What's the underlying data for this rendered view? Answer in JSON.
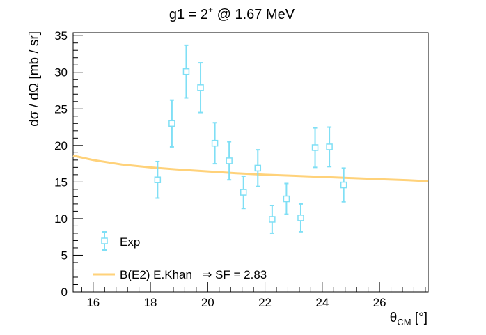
{
  "chart_data": {
    "type": "scatter",
    "title_main": "g1 = 2",
    "title_sup": "+",
    "title_rest": " @ 1.67 MeV",
    "ylabel": "dσ / dΩ [mb / sr]",
    "xlabel_main": "θ",
    "xlabel_sub": "CM",
    "xlabel_unit": " [°]",
    "xlim": [
      15.3,
      27.7
    ],
    "ylim": [
      0,
      35.4
    ],
    "x_ticks": [
      16,
      18,
      20,
      22,
      24,
      26
    ],
    "y_ticks": [
      0,
      5,
      10,
      15,
      20,
      25,
      30,
      35
    ],
    "series": [
      {
        "name": "Exp",
        "kind": "points_with_errors",
        "color": "#7fdff5",
        "points": [
          {
            "x": 18.25,
            "y": 15.3,
            "err": 2.5
          },
          {
            "x": 18.75,
            "y": 23.0,
            "err": 3.2
          },
          {
            "x": 19.25,
            "y": 30.1,
            "err": 3.6
          },
          {
            "x": 19.75,
            "y": 27.9,
            "err": 3.4
          },
          {
            "x": 20.25,
            "y": 20.3,
            "err": 2.8
          },
          {
            "x": 20.75,
            "y": 17.9,
            "err": 2.6
          },
          {
            "x": 21.25,
            "y": 13.6,
            "err": 2.2
          },
          {
            "x": 21.75,
            "y": 16.9,
            "err": 2.5
          },
          {
            "x": 22.25,
            "y": 9.9,
            "err": 1.9
          },
          {
            "x": 22.75,
            "y": 12.7,
            "err": 2.1
          },
          {
            "x": 23.25,
            "y": 10.1,
            "err": 1.9
          },
          {
            "x": 23.75,
            "y": 19.7,
            "err": 2.7
          },
          {
            "x": 24.25,
            "y": 19.8,
            "err": 2.7
          },
          {
            "x": 24.75,
            "y": 14.6,
            "err": 2.3
          }
        ]
      },
      {
        "name": "B(E2) E.Khan   ⇒ SF = 2.83",
        "kind": "line",
        "color": "#ffd27a",
        "points": [
          {
            "x": 15.3,
            "y": 18.6
          },
          {
            "x": 16.0,
            "y": 18.0
          },
          {
            "x": 17.0,
            "y": 17.4
          },
          {
            "x": 18.0,
            "y": 17.0
          },
          {
            "x": 19.0,
            "y": 16.7
          },
          {
            "x": 20.0,
            "y": 16.45
          },
          {
            "x": 21.0,
            "y": 16.2
          },
          {
            "x": 22.0,
            "y": 16.0
          },
          {
            "x": 23.0,
            "y": 15.85
          },
          {
            "x": 24.0,
            "y": 15.7
          },
          {
            "x": 25.0,
            "y": 15.55
          },
          {
            "x": 26.0,
            "y": 15.4
          },
          {
            "x": 27.0,
            "y": 15.25
          },
          {
            "x": 27.7,
            "y": 15.1
          }
        ]
      }
    ],
    "legend_position": "bottom-left",
    "grid": false
  }
}
